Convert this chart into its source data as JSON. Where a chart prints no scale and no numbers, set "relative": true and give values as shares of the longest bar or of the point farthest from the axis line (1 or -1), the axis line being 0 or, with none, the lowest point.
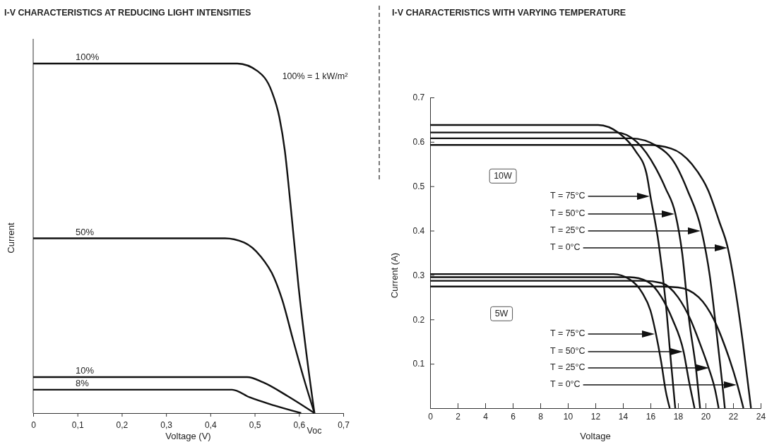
{
  "chart_data": [
    {
      "type": "line",
      "title": "I-V CHARACTERISTICS AT REDUCING LIGHT INTENSITIES",
      "xlabel": "Voltage (V)",
      "ylabel": "Current",
      "relative": true,
      "xlim": [
        0,
        0.7
      ],
      "xticks": [
        0,
        {
          "value": 0.1,
          "label": "0,1"
        },
        {
          "value": 0.2,
          "label": "0,2"
        },
        {
          "value": 0.3,
          "label": "0,3"
        },
        {
          "value": 0.4,
          "label": "0,4"
        },
        {
          "value": 0.5,
          "label": "0,5"
        },
        {
          "value": 0.6,
          "label": "0,6"
        },
        {
          "value": 0.7,
          "label": "0,7"
        }
      ],
      "series": [
        {
          "name": "100%",
          "color": "#111111",
          "x": [
            0,
            0.461,
            0.507,
            0.538,
            0.556,
            0.568,
            0.581,
            0.599,
            0.617,
            0.635
          ],
          "values": [
            1,
            1,
            0.978,
            0.922,
            0.845,
            0.752,
            0.596,
            0.363,
            0.169,
            0
          ]
        },
        {
          "name": "50%",
          "color": "#111111",
          "x": [
            0,
            0.433,
            0.476,
            0.513,
            0.544,
            0.562,
            0.587,
            0.611,
            0.635
          ],
          "values": [
            0.5,
            0.5,
            0.488,
            0.449,
            0.387,
            0.325,
            0.208,
            0.099,
            0
          ]
        },
        {
          "name": "10%",
          "color": "#111111",
          "x": [
            0,
            0.483,
            0.519,
            0.574,
            0.635
          ],
          "values": [
            0.103,
            0.103,
            0.088,
            0.049,
            0
          ]
        },
        {
          "name": "8%",
          "color": "#111111",
          "x": [
            0,
            0.449,
            0.489,
            0.544,
            0.605
          ],
          "values": [
            0.067,
            0.067,
            0.045,
            0.022,
            0
          ]
        }
      ],
      "annotations": [
        "100% = 1 kW/m²",
        "Voc"
      ]
    },
    {
      "type": "line",
      "title": "I-V CHARACTERISTICS WITH VARYING TEMPERATURE",
      "xlabel": "Voltage",
      "ylabel": "Current (A)",
      "xlim": [
        0,
        24
      ],
      "xticks": [
        0,
        2,
        4,
        6,
        8,
        10,
        12,
        14,
        16,
        18,
        20,
        22,
        24
      ],
      "ylim": [
        0,
        0.7
      ],
      "yticks": [
        0.1,
        0.2,
        0.3,
        0.4,
        0.5,
        0.6,
        0.7
      ],
      "series": [
        {
          "color": "#111111",
          "x": [
            0,
            12.2,
            13.7,
            14.9,
            15.7,
            16.0,
            16.6,
            17.1,
            17.5,
            17.8
          ],
          "values": [
            0.638,
            0.638,
            0.62,
            0.58,
            0.53,
            0.477,
            0.37,
            0.24,
            0.1,
            0
          ]
        },
        {
          "color": "#111111",
          "x": [
            0,
            13.5,
            15.0,
            16.4,
            17.1,
            17.8,
            18.3,
            18.8,
            19.3,
            19.6
          ],
          "values": [
            0.621,
            0.621,
            0.6,
            0.54,
            0.495,
            0.439,
            0.35,
            0.2,
            0.09,
            0
          ]
        },
        {
          "color": "#111111",
          "x": [
            0,
            14.6,
            16.5,
            17.8,
            18.7,
            19.7,
            20.3,
            20.8,
            21.2,
            21.4
          ],
          "values": [
            0.608,
            0.608,
            0.59,
            0.55,
            0.49,
            0.401,
            0.3,
            0.17,
            0.06,
            0
          ]
        },
        {
          "color": "#111111",
          "x": [
            0,
            15.8,
            17.5,
            19.0,
            20.2,
            21.0,
            21.6,
            22.2,
            22.7,
            23.1,
            23.3
          ],
          "values": [
            0.593,
            0.593,
            0.585,
            0.55,
            0.49,
            0.42,
            0.363,
            0.26,
            0.15,
            0.05,
            0
          ]
        },
        {
          "color": "#111111",
          "x": [
            0,
            13.3,
            14.5,
            15.4,
            16.0,
            16.4,
            16.8,
            17.1,
            17.4
          ],
          "values": [
            0.302,
            0.302,
            0.29,
            0.26,
            0.22,
            0.167,
            0.1,
            0.04,
            0
          ]
        },
        {
          "color": "#111111",
          "x": [
            0,
            14.5,
            15.8,
            16.8,
            17.6,
            18.4,
            18.8,
            19.2
          ],
          "values": [
            0.295,
            0.295,
            0.285,
            0.25,
            0.2,
            0.128,
            0.06,
            0
          ]
        },
        {
          "color": "#111111",
          "x": [
            0,
            15.5,
            16.8,
            18.0,
            18.9,
            19.6,
            20.2,
            20.7,
            20.95
          ],
          "values": [
            0.287,
            0.287,
            0.282,
            0.25,
            0.2,
            0.145,
            0.093,
            0.04,
            0
          ]
        },
        {
          "color": "#111111",
          "x": [
            0,
            16.5,
            18.0,
            19.5,
            20.6,
            21.4,
            22.3,
            22.75
          ],
          "values": [
            0.274,
            0.274,
            0.272,
            0.25,
            0.2,
            0.14,
            0.054,
            0
          ]
        }
      ],
      "annotations": [
        "10W",
        "5W",
        "T = 75°C",
        "T = 50°C",
        "T = 25°C",
        "T = 0°C",
        "T = 75°C",
        "T = 50°C",
        "T = 25°C",
        "T = 0°C"
      ]
    }
  ]
}
